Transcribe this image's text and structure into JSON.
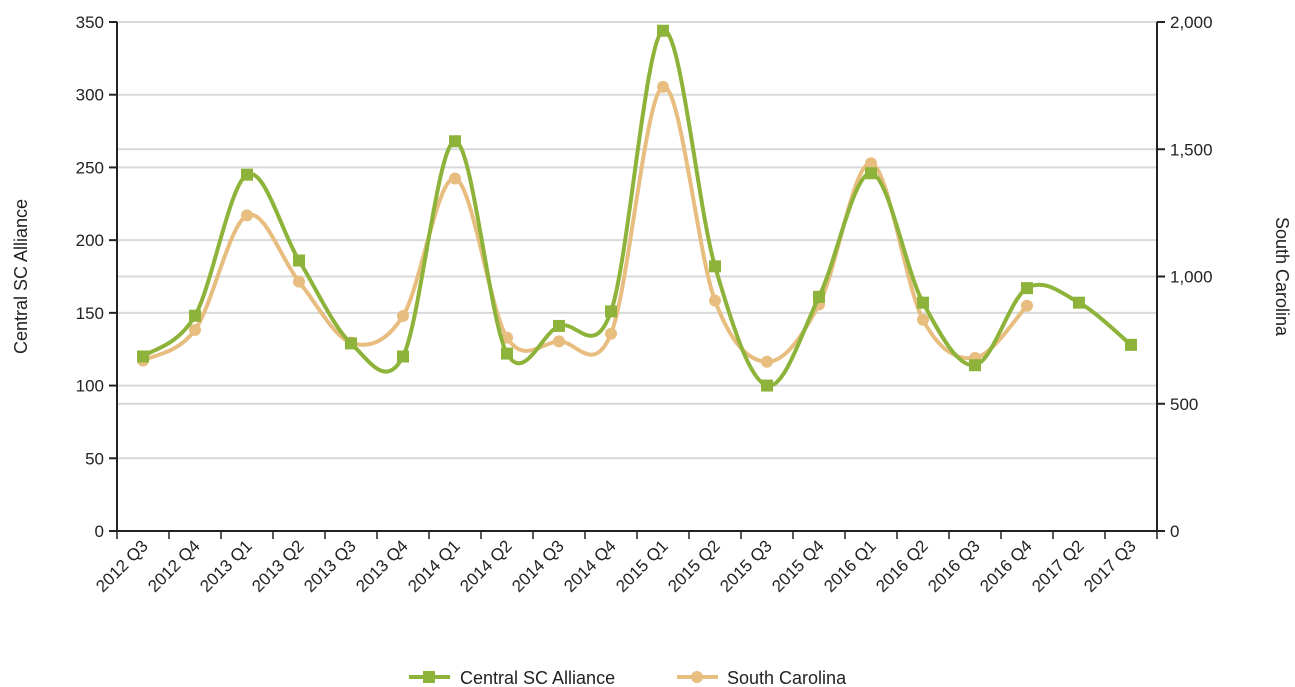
{
  "chart_data": {
    "type": "line",
    "categories": [
      "2012 Q3",
      "2012 Q4",
      "2013 Q1",
      "2013 Q2",
      "2013 Q3",
      "2013 Q4",
      "2014 Q1",
      "2014 Q2",
      "2014 Q3",
      "2014 Q4",
      "2015 Q1",
      "2015 Q2",
      "2015 Q3",
      "2015 Q4",
      "2016 Q1",
      "2016 Q2",
      "2016 Q3",
      "2016 Q4",
      "2017 Q2",
      "2017 Q3"
    ],
    "series": [
      {
        "name": "Central SC Alliance",
        "axis": "left",
        "color": "#8db33a",
        "marker": "square",
        "values": [
          120,
          148,
          245,
          186,
          129,
          120,
          268,
          122,
          141,
          151,
          344,
          182,
          100,
          161,
          246,
          157,
          114,
          167,
          157,
          128
        ]
      },
      {
        "name": "South Carolina",
        "axis": "right",
        "color": "#e7bd80",
        "marker": "circle",
        "values": [
          670,
          790,
          1240,
          980,
          740,
          845,
          1385,
          760,
          745,
          775,
          1745,
          905,
          665,
          890,
          1445,
          830,
          680,
          885,
          null,
          null
        ]
      }
    ],
    "y_left": {
      "label": "Central SC Alliance",
      "min": 0,
      "max": 350,
      "ticks": [
        0,
        50,
        100,
        150,
        200,
        250,
        300,
        350
      ],
      "tick_labels": [
        "0",
        "50",
        "100",
        "150",
        "200",
        "250",
        "300",
        "350"
      ]
    },
    "y_right": {
      "label": "South Carolina",
      "min": 0,
      "max": 2000,
      "ticks": [
        0,
        500,
        1000,
        1500,
        2000
      ],
      "tick_labels": [
        "0",
        "500",
        "1,000",
        "1,500",
        "2,000"
      ]
    },
    "grid": true,
    "legend_position": "bottom"
  }
}
